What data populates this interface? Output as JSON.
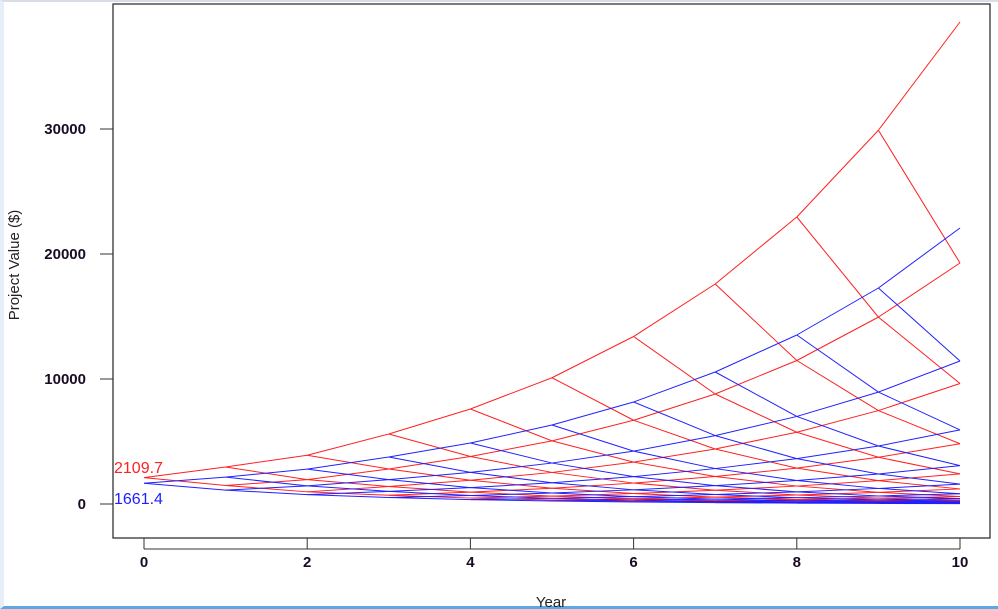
{
  "chart_data": {
    "type": "line",
    "title": "",
    "xlabel": "Year",
    "ylabel": "Project Value ($)",
    "xlim": [
      0,
      10
    ],
    "ylim": [
      0,
      38560
    ],
    "xticks": [
      0,
      2,
      4,
      6,
      8,
      10
    ],
    "yticks": [
      0,
      10000,
      20000,
      30000
    ],
    "grid": false,
    "lattices": [
      {
        "color": "#ff2020",
        "start_label": "2109.7",
        "nodes": [
          [
            2110
          ],
          [
            2960,
            1480
          ],
          [
            3900,
            1950,
            975
          ],
          [
            5600,
            2800,
            1400,
            700
          ],
          [
            7600,
            3800,
            1900,
            950,
            475
          ],
          [
            10100,
            5050,
            2525,
            1263,
            631,
            316
          ],
          [
            13400,
            6700,
            3350,
            1675,
            838,
            419,
            209
          ],
          [
            17600,
            8800,
            4400,
            2200,
            1100,
            550,
            275,
            138
          ],
          [
            22960,
            11480,
            5740,
            2870,
            1435,
            718,
            359,
            179,
            90
          ],
          [
            29900,
            14950,
            7475,
            3738,
            1869,
            934,
            467,
            234,
            117,
            58
          ],
          [
            38560,
            19280,
            9640,
            4820,
            2410,
            1205,
            603,
            301,
            151,
            75,
            38
          ]
        ]
      },
      {
        "color": "#2020ff",
        "start_label": "1661.4",
        "nodes": [
          [
            1661
          ],
          [
            2150,
            1114
          ],
          [
            2790,
            1446,
            749
          ],
          [
            3760,
            1948,
            1009,
            523
          ],
          [
            4880,
            2528,
            1310,
            679,
            352
          ],
          [
            6320,
            3275,
            1697,
            879,
            455,
            236
          ],
          [
            8160,
            4228,
            2191,
            1135,
            588,
            305,
            158
          ],
          [
            10560,
            5472,
            2835,
            1469,
            761,
            394,
            204,
            106
          ],
          [
            13520,
            7005,
            3630,
            1881,
            974,
            505,
            262,
            135,
            70
          ],
          [
            17280,
            8953,
            4639,
            2404,
            1245,
            645,
            334,
            173,
            90,
            47
          ],
          [
            22080,
            11440,
            5927,
            3071,
            1591,
            824,
            427,
            221,
            115,
            59,
            31
          ]
        ]
      }
    ]
  }
}
